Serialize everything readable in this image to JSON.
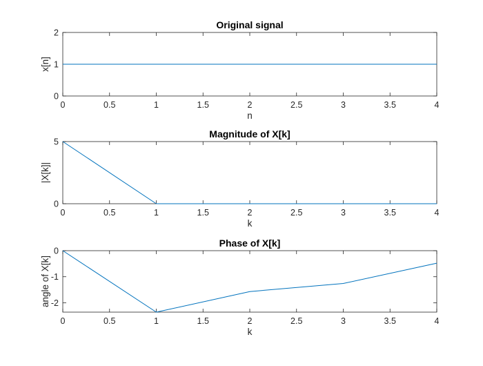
{
  "chart_data": [
    {
      "type": "line",
      "title": "Original signal",
      "xlabel": "n",
      "ylabel": "x[n]",
      "xlim": [
        0,
        4
      ],
      "ylim": [
        0,
        2
      ],
      "xticks": [
        "0",
        "0.5",
        "1",
        "1.5",
        "2",
        "2.5",
        "3",
        "3.5",
        "4"
      ],
      "yticks": [
        "0",
        "1",
        "2"
      ],
      "grid": false,
      "color": "#0072BD",
      "x": [
        0,
        1,
        2,
        3,
        4
      ],
      "y": [
        1,
        1,
        1,
        1,
        1
      ]
    },
    {
      "type": "line",
      "title": "Magnitude of X[k]",
      "xlabel": "k",
      "ylabel": "|X[k]|",
      "xlim": [
        0,
        4
      ],
      "ylim": [
        0,
        5
      ],
      "xticks": [
        "0",
        "0.5",
        "1",
        "1.5",
        "2",
        "2.5",
        "3",
        "3.5",
        "4"
      ],
      "yticks": [
        "0",
        "5"
      ],
      "grid": false,
      "color": "#0072BD",
      "x": [
        0,
        1,
        2,
        3,
        4
      ],
      "y": [
        5,
        0,
        0,
        0,
        0
      ]
    },
    {
      "type": "line",
      "title": "Phase of X[k]",
      "xlabel": "k",
      "ylabel": "angle of X[k]",
      "xlim": [
        0,
        4
      ],
      "ylim": [
        -2.36,
        0
      ],
      "xticks": [
        "0",
        "0.5",
        "1",
        "1.5",
        "2",
        "2.5",
        "3",
        "3.5",
        "4"
      ],
      "yticks": [
        "-2",
        "-1",
        "0"
      ],
      "grid": false,
      "color": "#0072BD",
      "x": [
        0,
        1,
        2,
        3,
        4
      ],
      "y": [
        0,
        -2.36,
        -1.57,
        -1.26,
        -0.48
      ]
    }
  ]
}
